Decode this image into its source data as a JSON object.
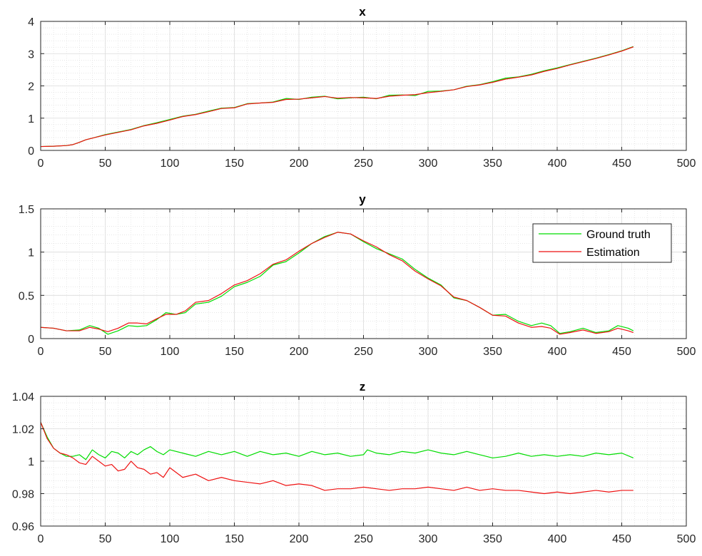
{
  "chart_data": [
    {
      "type": "line",
      "title": "x",
      "xlabel": "",
      "ylabel": "",
      "xlim": [
        0,
        500
      ],
      "ylim": [
        0,
        4
      ],
      "xticks": [
        "0",
        "50",
        "100",
        "150",
        "200",
        "250",
        "300",
        "350",
        "400",
        "450",
        "500"
      ],
      "yticks": [
        "0",
        "1",
        "2",
        "3",
        "4"
      ],
      "grid": true,
      "minor_grid": true,
      "series": [
        {
          "key": "ground_truth",
          "color": "#00dd00",
          "x": [
            0,
            10,
            20,
            25,
            30,
            35,
            40,
            50,
            60,
            70,
            80,
            90,
            100,
            110,
            120,
            130,
            140,
            150,
            160,
            170,
            180,
            190,
            200,
            210,
            220,
            230,
            240,
            250,
            260,
            270,
            280,
            290,
            300,
            310,
            320,
            330,
            340,
            350,
            360,
            370,
            380,
            390,
            400,
            410,
            420,
            430,
            440,
            450,
            459
          ],
          "y": [
            0.12,
            0.13,
            0.15,
            0.18,
            0.25,
            0.33,
            0.38,
            0.49,
            0.57,
            0.65,
            0.77,
            0.86,
            0.96,
            1.06,
            1.12,
            1.22,
            1.31,
            1.33,
            1.45,
            1.47,
            1.5,
            1.61,
            1.58,
            1.65,
            1.68,
            1.6,
            1.63,
            1.65,
            1.6,
            1.71,
            1.72,
            1.7,
            1.83,
            1.84,
            1.88,
            1.99,
            2.04,
            2.13,
            2.24,
            2.28,
            2.36,
            2.47,
            2.56,
            2.66,
            2.76,
            2.86,
            2.97,
            3.09,
            3.22
          ]
        },
        {
          "key": "estimation",
          "color": "#ee1111",
          "x": [
            0,
            10,
            20,
            25,
            30,
            35,
            40,
            50,
            60,
            70,
            80,
            90,
            100,
            110,
            120,
            130,
            140,
            150,
            160,
            170,
            180,
            190,
            200,
            210,
            220,
            230,
            240,
            250,
            260,
            270,
            280,
            290,
            300,
            310,
            320,
            330,
            340,
            350,
            360,
            370,
            380,
            390,
            400,
            410,
            420,
            430,
            440,
            450,
            459
          ],
          "y": [
            0.12,
            0.13,
            0.15,
            0.18,
            0.25,
            0.33,
            0.38,
            0.48,
            0.56,
            0.64,
            0.76,
            0.84,
            0.94,
            1.05,
            1.11,
            1.2,
            1.3,
            1.32,
            1.44,
            1.47,
            1.49,
            1.58,
            1.59,
            1.63,
            1.67,
            1.62,
            1.64,
            1.63,
            1.61,
            1.68,
            1.71,
            1.73,
            1.79,
            1.83,
            1.88,
            1.98,
            2.03,
            2.11,
            2.21,
            2.27,
            2.34,
            2.45,
            2.54,
            2.65,
            2.75,
            2.85,
            2.96,
            3.08,
            3.21
          ]
        }
      ]
    },
    {
      "type": "line",
      "title": "y",
      "xlabel": "",
      "ylabel": "",
      "xlim": [
        0,
        500
      ],
      "ylim": [
        0,
        1.5
      ],
      "xticks": [
        "0",
        "50",
        "100",
        "150",
        "200",
        "250",
        "300",
        "350",
        "400",
        "450",
        "500"
      ],
      "yticks": [
        "0",
        "0.5",
        "1",
        "1.5"
      ],
      "grid": true,
      "minor_grid": true,
      "legend_position": "top-right",
      "series": [
        {
          "key": "ground_truth",
          "name": "Ground truth",
          "color": "#00dd00",
          "x": [
            0,
            10,
            20,
            30,
            38,
            45,
            52,
            60,
            68,
            75,
            82,
            90,
            97,
            105,
            112,
            120,
            130,
            140,
            150,
            160,
            170,
            180,
            190,
            200,
            210,
            220,
            230,
            240,
            250,
            260,
            270,
            280,
            290,
            300,
            310,
            320,
            330,
            340,
            350,
            360,
            370,
            380,
            388,
            395,
            402,
            410,
            420,
            430,
            440,
            447,
            455,
            459
          ],
          "y": [
            0.13,
            0.12,
            0.09,
            0.1,
            0.15,
            0.12,
            0.05,
            0.09,
            0.15,
            0.14,
            0.15,
            0.22,
            0.3,
            0.28,
            0.3,
            0.4,
            0.42,
            0.49,
            0.6,
            0.65,
            0.72,
            0.85,
            0.89,
            0.99,
            1.1,
            1.18,
            1.23,
            1.21,
            1.12,
            1.04,
            0.98,
            0.92,
            0.8,
            0.7,
            0.62,
            0.47,
            0.44,
            0.36,
            0.27,
            0.28,
            0.2,
            0.15,
            0.18,
            0.15,
            0.06,
            0.08,
            0.12,
            0.07,
            0.09,
            0.15,
            0.12,
            0.09
          ]
        },
        {
          "key": "estimation",
          "name": "Estimation",
          "color": "#ee1111",
          "x": [
            0,
            10,
            20,
            30,
            38,
            45,
            52,
            60,
            68,
            75,
            82,
            90,
            97,
            105,
            112,
            120,
            130,
            140,
            150,
            160,
            170,
            180,
            190,
            200,
            210,
            220,
            230,
            240,
            250,
            260,
            270,
            280,
            290,
            300,
            310,
            320,
            330,
            340,
            350,
            360,
            370,
            380,
            388,
            395,
            402,
            410,
            420,
            430,
            440,
            447,
            455,
            459
          ],
          "y": [
            0.13,
            0.12,
            0.09,
            0.09,
            0.13,
            0.11,
            0.08,
            0.12,
            0.18,
            0.18,
            0.17,
            0.23,
            0.28,
            0.28,
            0.32,
            0.42,
            0.44,
            0.52,
            0.62,
            0.67,
            0.75,
            0.86,
            0.91,
            1.01,
            1.1,
            1.17,
            1.23,
            1.21,
            1.13,
            1.06,
            0.97,
            0.9,
            0.78,
            0.69,
            0.61,
            0.48,
            0.44,
            0.36,
            0.27,
            0.26,
            0.18,
            0.13,
            0.14,
            0.12,
            0.05,
            0.07,
            0.1,
            0.06,
            0.08,
            0.12,
            0.09,
            0.07
          ]
        }
      ]
    },
    {
      "type": "line",
      "title": "z",
      "xlabel": "",
      "ylabel": "",
      "xlim": [
        0,
        500
      ],
      "ylim": [
        0.96,
        1.04
      ],
      "xticks": [
        "0",
        "50",
        "100",
        "150",
        "200",
        "250",
        "300",
        "350",
        "400",
        "450",
        "500"
      ],
      "yticks": [
        "0.96",
        "0.98",
        "1",
        "1.02",
        "1.04"
      ],
      "grid": true,
      "minor_grid": true,
      "series": [
        {
          "key": "ground_truth",
          "color": "#00dd00",
          "x": [
            0,
            5,
            10,
            15,
            20,
            25,
            30,
            35,
            40,
            45,
            50,
            55,
            60,
            65,
            70,
            75,
            80,
            85,
            90,
            95,
            100,
            110,
            120,
            130,
            140,
            150,
            160,
            170,
            180,
            190,
            200,
            210,
            220,
            230,
            240,
            250,
            253,
            260,
            270,
            280,
            290,
            300,
            310,
            320,
            330,
            340,
            350,
            360,
            370,
            380,
            390,
            400,
            410,
            420,
            430,
            440,
            450,
            459
          ],
          "y": [
            1.024,
            1.015,
            1.008,
            1.005,
            1.003,
            1.003,
            1.004,
            1.001,
            1.007,
            1.004,
            1.002,
            1.006,
            1.005,
            1.002,
            1.006,
            1.004,
            1.007,
            1.009,
            1.006,
            1.004,
            1.007,
            1.005,
            1.003,
            1.006,
            1.004,
            1.006,
            1.003,
            1.006,
            1.004,
            1.005,
            1.003,
            1.006,
            1.004,
            1.005,
            1.003,
            1.004,
            1.007,
            1.005,
            1.004,
            1.006,
            1.005,
            1.007,
            1.005,
            1.004,
            1.006,
            1.004,
            1.002,
            1.003,
            1.005,
            1.003,
            1.004,
            1.003,
            1.004,
            1.003,
            1.005,
            1.004,
            1.005,
            1.002
          ]
        },
        {
          "key": "estimation",
          "color": "#ee1111",
          "x": [
            0,
            5,
            10,
            15,
            20,
            25,
            30,
            35,
            40,
            45,
            50,
            55,
            60,
            65,
            70,
            75,
            80,
            85,
            90,
            95,
            100,
            110,
            120,
            130,
            140,
            150,
            160,
            170,
            180,
            190,
            200,
            210,
            220,
            230,
            240,
            250,
            260,
            270,
            280,
            290,
            300,
            310,
            320,
            330,
            340,
            350,
            360,
            370,
            380,
            390,
            400,
            410,
            420,
            430,
            440,
            450,
            459
          ],
          "y": [
            1.024,
            1.014,
            1.008,
            1.005,
            1.004,
            1.002,
            0.999,
            0.998,
            1.003,
            1.0,
            0.997,
            0.998,
            0.994,
            0.995,
            1.0,
            0.996,
            0.995,
            0.992,
            0.993,
            0.99,
            0.996,
            0.99,
            0.992,
            0.988,
            0.99,
            0.988,
            0.987,
            0.986,
            0.988,
            0.985,
            0.986,
            0.985,
            0.982,
            0.983,
            0.983,
            0.984,
            0.983,
            0.982,
            0.983,
            0.983,
            0.984,
            0.983,
            0.982,
            0.984,
            0.982,
            0.983,
            0.982,
            0.982,
            0.981,
            0.98,
            0.981,
            0.98,
            0.981,
            0.982,
            0.981,
            0.982,
            0.982
          ]
        }
      ]
    }
  ]
}
